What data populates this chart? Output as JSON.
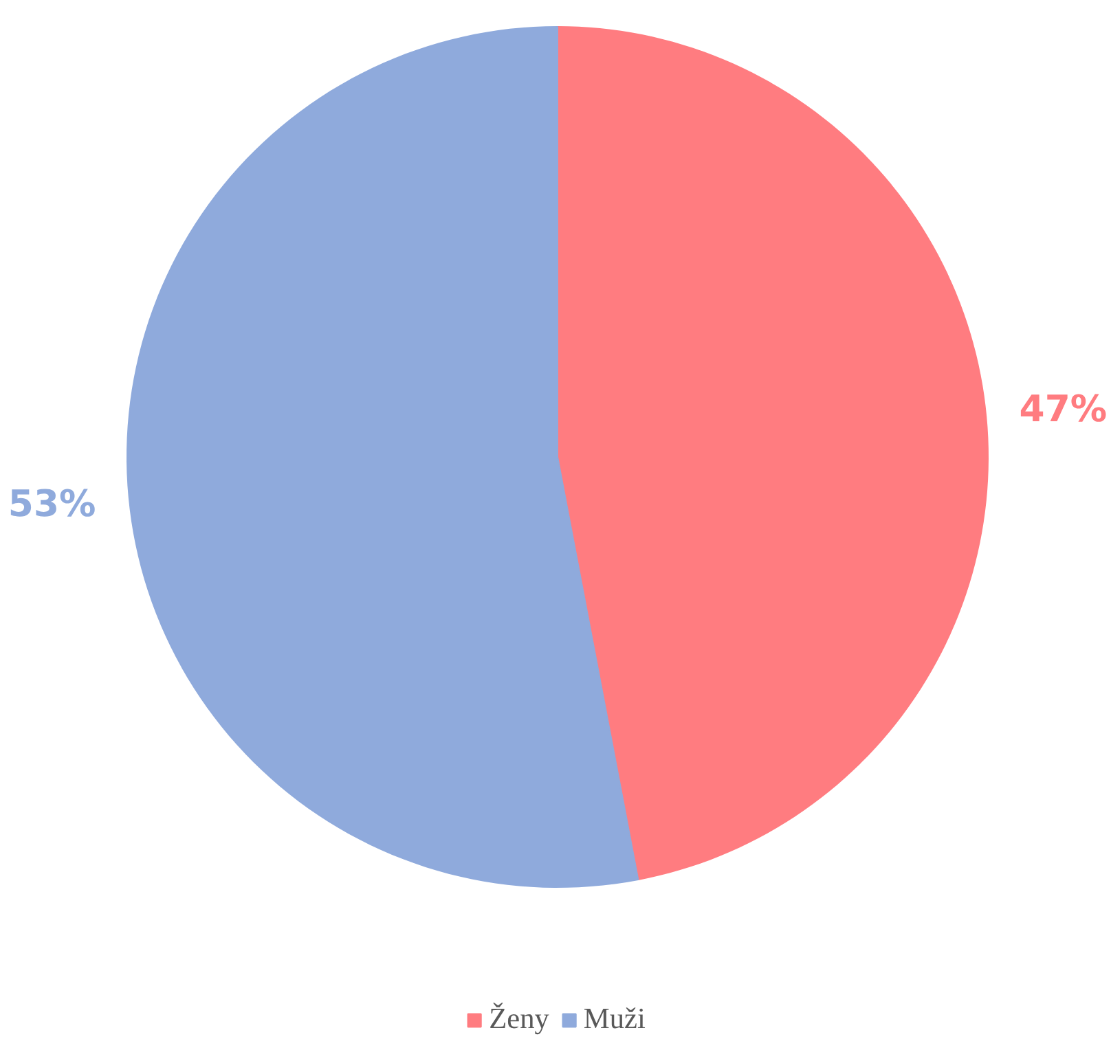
{
  "chart_data": {
    "type": "pie",
    "categories": [
      "Ženy",
      "Muži"
    ],
    "values": [
      47,
      53
    ],
    "colors": [
      "#ff7c80",
      "#8faadc"
    ],
    "value_labels": [
      "47%",
      "53%"
    ],
    "legend": "bottom"
  }
}
